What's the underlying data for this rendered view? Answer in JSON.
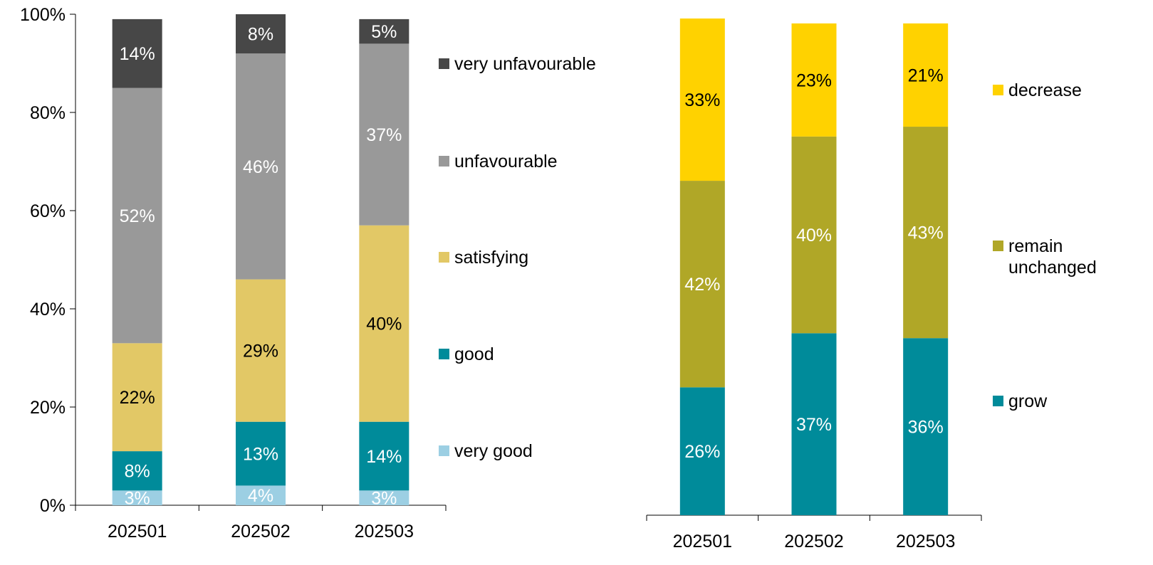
{
  "chart_data": [
    {
      "type": "bar",
      "stacked": true,
      "categories": [
        "202501",
        "202502",
        "202503"
      ],
      "y_ticks": [
        "0%",
        "20%",
        "40%",
        "60%",
        "80%",
        "100%"
      ],
      "ylim": [
        0,
        100
      ],
      "grid": false,
      "legend_position": "right",
      "series": [
        {
          "name": "very good",
          "values": [
            3,
            4,
            3
          ],
          "labels": [
            "3%",
            "4%",
            "3%"
          ],
          "color": "#9ccfe3",
          "label_color": "#ffffff"
        },
        {
          "name": "good",
          "values": [
            8,
            13,
            14
          ],
          "labels": [
            "8%",
            "13%",
            "14%"
          ],
          "color": "#008b9a",
          "label_color": "#ffffff"
        },
        {
          "name": "satisfying",
          "values": [
            22,
            29,
            40
          ],
          "labels": [
            "22%",
            "29%",
            "40%"
          ],
          "color": "#e2c866",
          "label_color": "#000000"
        },
        {
          "name": "unfavourable",
          "values": [
            52,
            46,
            37
          ],
          "labels": [
            "52%",
            "46%",
            "37%"
          ],
          "color": "#999999",
          "label_color": "#ffffff"
        },
        {
          "name": "very unfavourable",
          "values": [
            14,
            8,
            5
          ],
          "labels": [
            "14%",
            "8%",
            "5%"
          ],
          "color": "#474747",
          "label_color": "#ffffff"
        }
      ]
    },
    {
      "type": "bar",
      "stacked": true,
      "categories": [
        "202501",
        "202502",
        "202503"
      ],
      "y_ticks": [],
      "grid": false,
      "legend_position": "right",
      "series": [
        {
          "name": "grow",
          "values": [
            26,
            37,
            36
          ],
          "labels": [
            "26%",
            "37%",
            "36%"
          ],
          "color": "#008b9a",
          "label_color": "#ffffff"
        },
        {
          "name": "remain unchanged",
          "values": [
            42,
            40,
            43
          ],
          "labels": [
            "42%",
            "40%",
            "43%"
          ],
          "color": "#b0a727",
          "label_color": "#ffffff"
        },
        {
          "name": "decrease",
          "values": [
            33,
            23,
            21
          ],
          "labels": [
            "33%",
            "23%",
            "21%"
          ],
          "color": "#ffd200",
          "label_color": "#000000"
        }
      ]
    }
  ]
}
